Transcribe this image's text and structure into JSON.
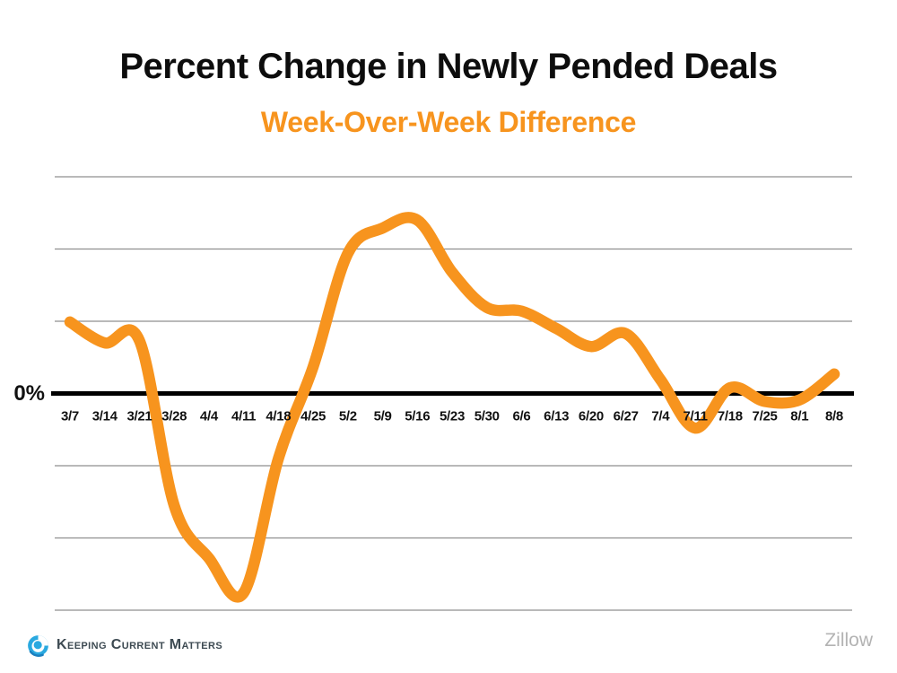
{
  "header": {
    "title": "Percent Change in Newly Pended Deals",
    "subtitle": "Week-Over-Week Difference",
    "title_color": "#0d0d0d",
    "subtitle_color": "#F7941E"
  },
  "chart_data": {
    "type": "line",
    "title": "Percent Change in Newly Pended Deals",
    "subtitle": "Week-Over-Week Difference",
    "categories": [
      "3/7",
      "3/14",
      "3/21",
      "3/28",
      "4/4",
      "4/11",
      "4/18",
      "4/25",
      "5/2",
      "5/9",
      "5/16",
      "5/23",
      "5/30",
      "6/6",
      "6/13",
      "6/20",
      "6/27",
      "7/4",
      "7/11",
      "7/18",
      "7/25",
      "8/1",
      "8/8"
    ],
    "values": [
      0.99,
      0.7,
      0.73,
      -1.55,
      -2.28,
      -2.76,
      -0.9,
      0.37,
      1.94,
      2.29,
      2.4,
      1.68,
      1.19,
      1.14,
      0.9,
      0.65,
      0.83,
      0.19,
      -0.48,
      0.08,
      -0.11,
      -0.09,
      0.27
    ],
    "y_axis": {
      "zero_label": "0%",
      "note": "only 0% is labeled; values expressed in gridline units",
      "gridline_values": [
        3,
        2,
        1,
        -1,
        -2,
        -3
      ],
      "ylim": [
        -3.15,
        3.0
      ]
    },
    "legend": "none",
    "grid": "horizontal",
    "line_color": "#F7941E",
    "line_width": 12.5,
    "gridline_color": "#8f8f8f",
    "zero_line_color": "#000000",
    "tick_label_color": "#111111"
  },
  "footer": {
    "brand": "Keeping Current Matters",
    "source": "Zillow",
    "brand_color": "#3d4a52",
    "source_color": "#b3b3b3",
    "logo_blue": "#2AA9E0",
    "logo_blue_dark": "#1B7FBF"
  }
}
